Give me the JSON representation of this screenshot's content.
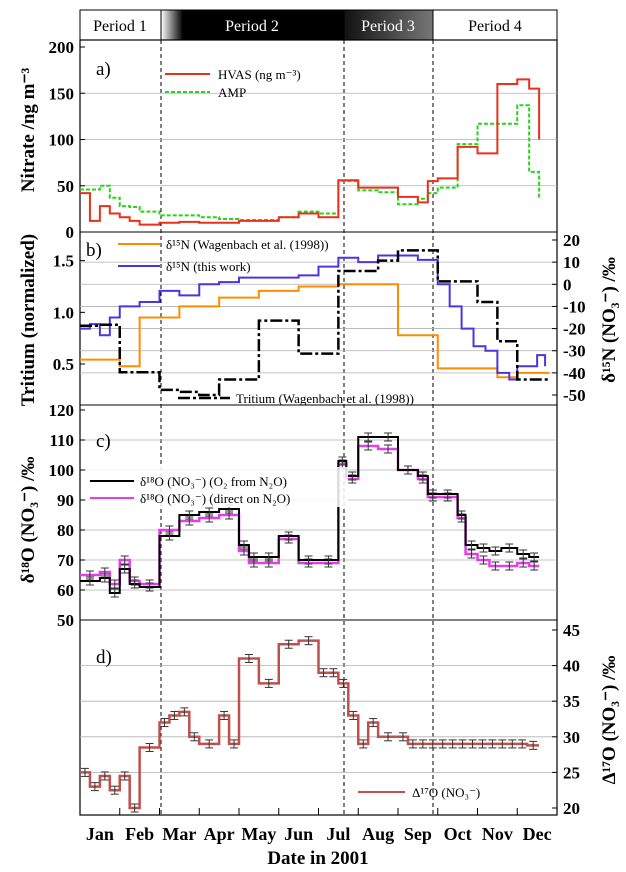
{
  "periods": [
    {
      "label": "Period 1",
      "bg": "#ffffff",
      "fg": "#000000"
    },
    {
      "label": "Period 2",
      "bg": "#000000",
      "fg": "#ffffff"
    },
    {
      "label": "Period 3",
      "bg": "#3a3a3a",
      "fg": "#ffffff"
    },
    {
      "label": "Period 4",
      "bg": "#ffffff",
      "fg": "#000000"
    }
  ],
  "xlabel": "Date in 2001",
  "colors": {
    "hvas": "#e8311a",
    "amp": "#27d31d",
    "d15n_wag": "#ff8c00",
    "d15n_this": "#4c35e0",
    "tritium": "#000000",
    "d18o_o2": "#000000",
    "d18o_direct": "#e040e8",
    "d17o": "#c0504d"
  },
  "chart_data": [
    {
      "type": "line",
      "panel": "a)",
      "ylabel": "Nitrate /ng m⁻³",
      "ylim": [
        0,
        200
      ],
      "yticks": [
        "0",
        "50",
        "100",
        "150",
        "200"
      ],
      "x_unit": "month of 2001 (1 = start of Jan)",
      "series": [
        {
          "name": "HVAS (ng m⁻³)",
          "key": "hvas",
          "style": "solid",
          "x": [
            1.0,
            1.25,
            1.5,
            1.75,
            2.0,
            2.25,
            2.5,
            3.0,
            3.5,
            4.0,
            4.5,
            5.0,
            5.5,
            6.0,
            6.5,
            7.0,
            7.5,
            8.0,
            8.5,
            9.0,
            9.5,
            9.75,
            10.0,
            10.5,
            11.0,
            11.5,
            12.0,
            12.3,
            12.55
          ],
          "y": [
            42,
            12,
            28,
            20,
            16,
            12,
            8,
            10,
            11,
            10,
            10,
            12,
            12,
            16,
            20,
            16,
            56,
            48,
            48,
            38,
            32,
            55,
            58,
            92,
            85,
            160,
            165,
            155,
            100
          ]
        },
        {
          "name": "AMP",
          "key": "amp",
          "style": "dashed",
          "x": [
            1.0,
            1.5,
            1.75,
            2.0,
            2.25,
            2.5,
            3.0,
            3.5,
            4.0,
            4.5,
            5.0,
            5.5,
            6.0,
            6.5,
            7.0,
            7.5,
            8.0,
            8.5,
            9.0,
            9.5,
            9.75,
            10.0,
            10.5,
            11.0,
            11.5,
            12.0,
            12.3,
            12.55
          ],
          "y": [
            46,
            50,
            37,
            28,
            27,
            22,
            18,
            18,
            16,
            14,
            13,
            13,
            16,
            22,
            20,
            55,
            45,
            43,
            30,
            36,
            42,
            48,
            95,
            117,
            117,
            137,
            65,
            37
          ]
        }
      ]
    },
    {
      "type": "line",
      "panel": "b)",
      "ylabel": "Tritium (normalized)",
      "ylim_left": [
        0.2,
        1.7
      ],
      "yticks_left": [
        "0.5",
        "1.0",
        "1.5"
      ],
      "ylabel_right": "δ¹⁵N (NO₃⁻) /‰",
      "ylim_right": [
        -50,
        20
      ],
      "yticks_right": [
        "20",
        "10",
        "0",
        "-10",
        "-20",
        "-30",
        "-40",
        "-50"
      ],
      "series": [
        {
          "name": "δ¹⁵N (Wagenbach et al. (1998))",
          "key": "d15n_wag",
          "axis": "right",
          "x": [
            1.0,
            2.0,
            2.5,
            3.5,
            4.5,
            5.5,
            6.5,
            7.5,
            8.0,
            9.0,
            10.0,
            11.0,
            11.5,
            12.0,
            12.8
          ],
          "y": [
            -34,
            -37,
            -15,
            -10,
            -6,
            -3,
            -1,
            0,
            0,
            -23,
            -38,
            -38,
            -42,
            -40,
            -40
          ]
        },
        {
          "name": "δ¹⁵N (this work)",
          "key": "d15n_this",
          "axis": "right",
          "x": [
            1.0,
            1.25,
            1.5,
            1.75,
            2.0,
            2.25,
            2.5,
            3.0,
            3.5,
            4.0,
            4.5,
            5.0,
            5.5,
            6.0,
            6.5,
            7.0,
            7.5,
            8.0,
            8.5,
            9.0,
            9.5,
            10.0,
            10.3,
            10.6,
            10.9,
            11.2,
            11.5,
            11.8,
            12.0,
            12.5,
            12.7
          ],
          "y": [
            -20,
            -18,
            -23,
            -15,
            -10,
            -10,
            -8,
            -3,
            -5,
            0,
            1,
            3,
            3,
            3,
            4,
            8,
            12,
            10,
            13,
            13,
            11,
            0,
            -10,
            -20,
            -28,
            -30,
            -40,
            -43,
            -37,
            -32,
            -37
          ]
        },
        {
          "name": "Tritium (Wagenbach et al. (1998))",
          "key": "tritium",
          "axis": "left",
          "x": [
            1.0,
            1.5,
            2.0,
            2.5,
            3.0,
            3.5,
            4.0,
            4.5,
            5.5,
            6.0,
            6.5,
            7.0,
            7.5,
            8.0,
            8.5,
            9.0,
            10.0,
            11.0,
            11.5,
            12.0,
            12.8
          ],
          "y": [
            0.87,
            0.88,
            0.42,
            0.42,
            0.25,
            0.23,
            0.2,
            0.35,
            0.92,
            0.92,
            0.6,
            0.6,
            1.4,
            1.4,
            1.5,
            1.6,
            1.3,
            1.1,
            0.72,
            0.35,
            0.35
          ]
        }
      ]
    },
    {
      "type": "line",
      "panel": "c)",
      "ylabel": "δ¹⁸O (NO₃⁻) /‰",
      "ylim": [
        50,
        120
      ],
      "yticks": [
        "50",
        "60",
        "70",
        "80",
        "90",
        "100",
        "110",
        "120"
      ],
      "series": [
        {
          "name": "δ¹⁸O (NO₃⁻) (O₂ from N₂O)",
          "key": "d18o_o2",
          "x": [
            1.0,
            1.5,
            1.75,
            2.0,
            2.25,
            2.5,
            3.0,
            3.5,
            4.0,
            4.5,
            5.0,
            5.25,
            5.5,
            6.0,
            6.5,
            7.0,
            7.5,
            7.7,
            8.0,
            8.5,
            9.0,
            9.5,
            9.75,
            10.0,
            10.5,
            10.7,
            11.0,
            11.3,
            11.6,
            12.0,
            12.3,
            12.55
          ],
          "y": [
            63,
            64,
            59,
            67,
            62,
            61,
            78,
            85,
            86,
            87,
            75,
            71,
            71,
            78,
            70,
            70,
            103,
            98,
            111,
            111,
            100,
            98,
            92,
            92,
            85,
            75,
            74,
            73,
            74,
            72,
            71,
            71
          ],
          "errorbars": true
        },
        {
          "name": "δ¹⁸O (NO₃⁻) (direct on N₂O)",
          "key": "d18o_direct",
          "x": [
            1.0,
            1.5,
            1.75,
            2.0,
            2.25,
            2.5,
            3.0,
            3.5,
            4.0,
            4.5,
            5.0,
            5.25,
            5.5,
            6.0,
            6.5,
            7.0,
            7.5,
            7.7,
            8.0,
            8.5,
            9.0,
            9.5,
            9.75,
            10.0,
            10.5,
            10.7,
            11.0,
            11.3,
            11.6,
            12.0,
            12.3,
            12.55
          ],
          "y": [
            65,
            66,
            62,
            70,
            63,
            62,
            80,
            83,
            84,
            85,
            73,
            69,
            69,
            77,
            69,
            69,
            102,
            97,
            108,
            107,
            100,
            97,
            91,
            91,
            84,
            72,
            70,
            68,
            68,
            69,
            68,
            68
          ],
          "errorbars": true
        }
      ]
    },
    {
      "type": "line",
      "panel": "d)",
      "ylabel_right": "Δ¹⁷O (NO₃⁻) /‰",
      "ylim_right": [
        20,
        45
      ],
      "yticks_right": [
        "45",
        "40",
        "35",
        "30",
        "25",
        "20"
      ],
      "series": [
        {
          "name": "Δ¹⁷O (NO₃⁻)",
          "key": "d17o",
          "x": [
            1.0,
            1.25,
            1.5,
            1.75,
            2.0,
            2.25,
            2.5,
            3.0,
            3.25,
            3.5,
            3.75,
            4.0,
            4.5,
            4.75,
            5.0,
            5.5,
            6.0,
            6.5,
            7.0,
            7.25,
            7.5,
            7.75,
            8.0,
            8.25,
            8.5,
            9.0,
            9.25,
            9.5,
            9.75,
            10.0,
            10.25,
            10.5,
            10.75,
            11.0,
            11.25,
            11.5,
            11.75,
            12.0,
            12.25,
            12.55
          ],
          "y": [
            25,
            23,
            24.5,
            22.5,
            24.5,
            20,
            28.5,
            32,
            33,
            33.5,
            30,
            29,
            33,
            29,
            41,
            37.5,
            43,
            43.5,
            39,
            39,
            37.5,
            33,
            29,
            32,
            30,
            30,
            29,
            29,
            29,
            29,
            29,
            29,
            29,
            29,
            29,
            29,
            29,
            29,
            28.8,
            28.8
          ],
          "errorbars": true
        }
      ]
    }
  ],
  "months": [
    "Jan",
    "Feb",
    "Mar",
    "Apr",
    "May",
    "Jun",
    "Jul",
    "Aug",
    "Sep",
    "Oct",
    "Nov",
    "Dec"
  ],
  "panel_letters": [
    "a)",
    "b)",
    "c)",
    "d)"
  ]
}
